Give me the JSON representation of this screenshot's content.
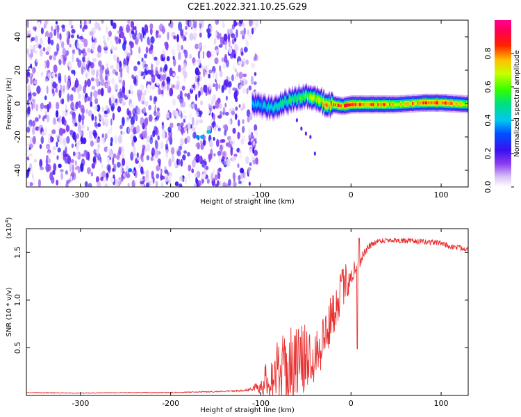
{
  "figure": {
    "title": "C2E1.2022.321.10.25.G29"
  },
  "chart_data": [
    {
      "type": "heatmap",
      "xlabel": "Height of straight line (km)",
      "ylabel": "Frequency (Hz)",
      "xlim": [
        -360,
        130
      ],
      "ylim": [
        -50,
        50
      ],
      "xticks": [
        "-300",
        "-200",
        "-100",
        "0",
        "100"
      ],
      "xtick_values": [
        -300,
        -200,
        -100,
        0,
        100
      ],
      "yticks": [
        "-40",
        "-20",
        "0",
        "20",
        "40"
      ],
      "ytick_values": [
        -40,
        -20,
        0,
        20,
        40
      ],
      "colorbar": {
        "label": "Normalized spectral amplitude",
        "range": [
          0,
          1
        ],
        "ticks": [
          "0.0",
          "0.2",
          "0.4",
          "0.6",
          "0.8"
        ],
        "tick_values": [
          0.0,
          0.2,
          0.4,
          0.6,
          0.8
        ],
        "colormap": "rainbow (white-violet-blue-cyan-green-yellow-red-magenta)"
      },
      "regions": {
        "noise_region_x": [
          -360,
          -110
        ],
        "noise_level": [
          0.0,
          0.25
        ],
        "signal_band_x": [
          -110,
          130
        ],
        "signal_center_freq": [
          [
            -110,
            0
          ],
          [
            -100,
            -1
          ],
          [
            -90,
            -2
          ],
          [
            -80,
            0
          ],
          [
            -70,
            2
          ],
          [
            -60,
            4
          ],
          [
            -50,
            5
          ],
          [
            -40,
            4
          ],
          [
            -30,
            1
          ],
          [
            -20,
            0
          ],
          [
            -10,
            -1
          ],
          [
            0,
            0
          ],
          [
            20,
            0
          ],
          [
            50,
            0
          ],
          [
            80,
            1
          ],
          [
            100,
            1
          ],
          [
            130,
            0
          ]
        ],
        "signal_amplitude": [
          [
            -110,
            0.4
          ],
          [
            -80,
            0.5
          ],
          [
            -50,
            0.65
          ],
          [
            -30,
            0.8
          ],
          [
            -20,
            0.85
          ],
          [
            0,
            0.95
          ],
          [
            50,
            0.8
          ],
          [
            100,
            0.9
          ],
          [
            130,
            0.7
          ]
        ],
        "tail_points": [
          [
            -60,
            -10
          ],
          [
            -55,
            -15
          ],
          [
            -50,
            -18
          ],
          [
            -45,
            -20
          ],
          [
            -40,
            -30
          ]
        ]
      }
    },
    {
      "type": "line",
      "xlabel": "Height of straight line (km)",
      "ylabel": "SNR (10 * v/v)",
      "yscale_label": "(x10",
      "yscale_exponent": "4",
      "xlim": [
        -360,
        130
      ],
      "ylim": [
        0,
        17500
      ],
      "xticks": [
        "-300",
        "-200",
        "-100",
        "0",
        "100"
      ],
      "xtick_values": [
        -300,
        -200,
        -100,
        0,
        100
      ],
      "yticks": [
        "0.5",
        "1.0",
        "1.5"
      ],
      "ytick_values": [
        5000,
        10000,
        15000
      ],
      "line_color": "#e83030",
      "series": [
        {
          "x": [
            -360,
            -300,
            -250,
            -200,
            -150,
            -120,
            -110,
            -100,
            -95,
            -90,
            -85,
            -80,
            -75,
            -70,
            -65,
            -60,
            -55,
            -50,
            -45,
            -40,
            -35,
            -30,
            -25,
            -20,
            -15,
            -10,
            -5,
            0,
            5,
            10,
            15,
            20,
            25,
            30,
            40,
            50,
            60,
            70,
            80,
            90,
            100,
            110,
            120,
            130
          ],
          "y": [
            300,
            250,
            300,
            300,
            400,
            500,
            700,
            1000,
            1500,
            1800,
            2200,
            2500,
            2800,
            3000,
            3200,
            3400,
            3600,
            3900,
            4200,
            4600,
            5200,
            6000,
            7200,
            8600,
            10000,
            11200,
            12000,
            12600,
            13400,
            14200,
            15000,
            15600,
            16000,
            16200,
            16300,
            16300,
            16200,
            16200,
            16100,
            16100,
            16000,
            15600,
            15500,
            15400
          ],
          "noise_amplitude": [
            40,
            40,
            40,
            40,
            60,
            80,
            150,
            900,
            1800,
            2400,
            3000,
            3500,
            3600,
            4000,
            4000,
            4200,
            3800,
            3600,
            3200,
            3200,
            3000,
            3000,
            2600,
            2400,
            2400,
            2200,
            2000,
            1800,
            1000,
            700,
            500,
            400,
            350,
            300,
            300,
            300,
            300,
            300,
            300,
            300,
            300,
            300,
            300,
            300
          ]
        }
      ]
    }
  ]
}
